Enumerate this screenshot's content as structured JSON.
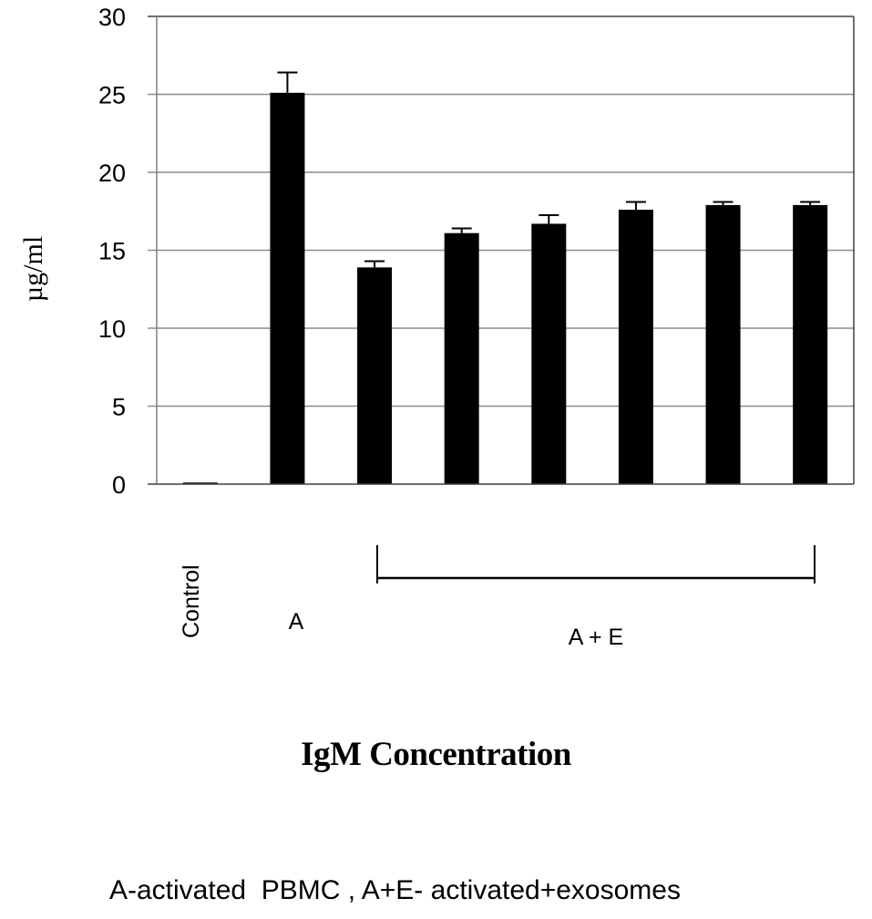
{
  "chart_data": {
    "type": "bar",
    "title": "IgM Concentration",
    "xlabel": "",
    "ylabel": "µg/ml",
    "ylim": [
      0,
      30
    ],
    "yticks": [
      0,
      5,
      10,
      15,
      20,
      25,
      30
    ],
    "grid": true,
    "categories": [
      "Control",
      "A",
      "A + E (1)",
      "A + E (2)",
      "A + E (3)",
      "A + E (4)",
      "A + E (5)",
      "A + E (6)"
    ],
    "category_labels": {
      "control": "Control",
      "a": "A",
      "a_plus_e": "A + E"
    },
    "values": [
      0.1,
      25.1,
      13.9,
      16.1,
      16.7,
      17.6,
      17.9,
      17.9
    ],
    "error_upper": [
      0.0,
      1.3,
      0.4,
      0.3,
      0.55,
      0.5,
      0.2,
      0.2
    ],
    "bar_color": "#000000",
    "caption": "A-activated  PBMC , A+E- activated+exosomes"
  },
  "labels": {
    "ylabel": "µg/ml",
    "title": "IgM Concentration",
    "caption": "A-activated  PBMC , A+E- activated+exosomes",
    "cat_control": "Control",
    "cat_a": "A",
    "cat_ae": "A + E",
    "ticks": [
      "0",
      "5",
      "10",
      "15",
      "20",
      "25",
      "30"
    ]
  }
}
